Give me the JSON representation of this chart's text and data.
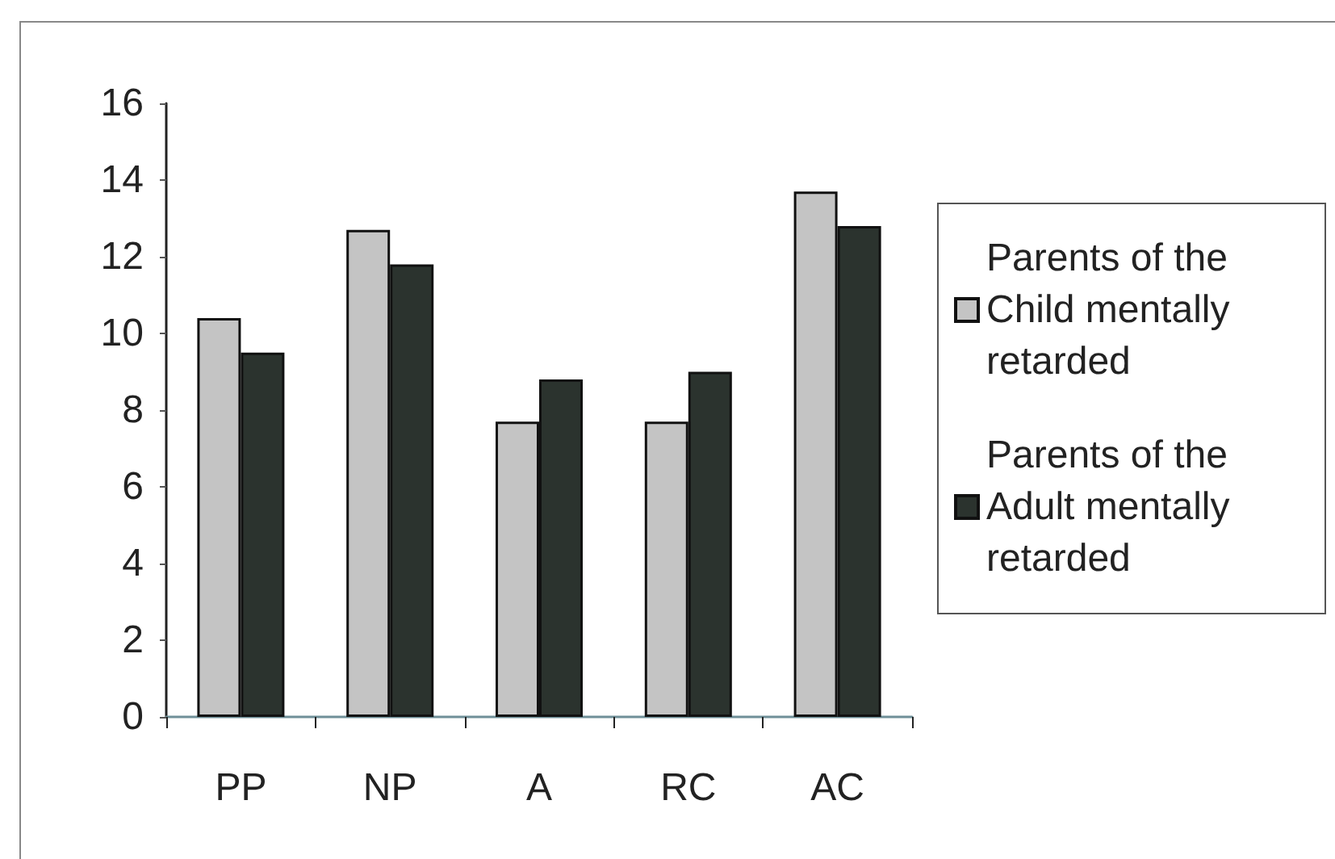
{
  "chart_data": {
    "type": "bar",
    "categories": [
      "PP",
      "NP",
      "A",
      "RC",
      "AC"
    ],
    "series": [
      {
        "name": "Parents of the Child mentally retarded",
        "color": "#c4c4c4",
        "values": [
          10.4,
          12.7,
          7.7,
          7.7,
          13.7
        ]
      },
      {
        "name": "Parents of the Adult mentally retarded",
        "color": "#2b332e",
        "values": [
          9.5,
          11.8,
          8.8,
          9.0,
          12.8
        ]
      }
    ],
    "ylim": [
      0,
      16
    ],
    "yticks": [
      0,
      2,
      4,
      6,
      8,
      10,
      12,
      14,
      16
    ],
    "grid": false,
    "legend": "right"
  }
}
